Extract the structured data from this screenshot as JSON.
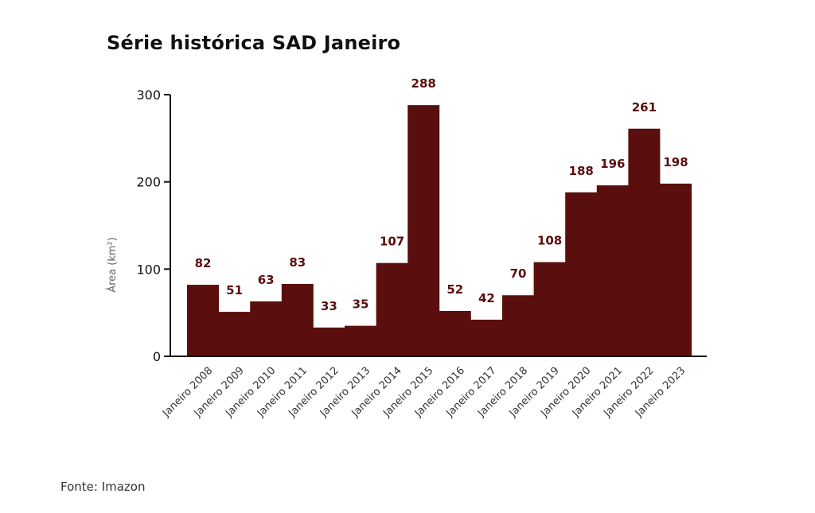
{
  "chart_data": {
    "type": "bar",
    "title": "Série histórica SAD Janeiro",
    "xlabel": "",
    "ylabel": "Área (km²)",
    "ylim": [
      0,
      300
    ],
    "yticks": [
      0,
      100,
      200,
      300
    ],
    "grid": false,
    "bar_color": "#5a0e0e",
    "label_color": "#5a0e0e",
    "categories": [
      "Janeiro 2008",
      "Janeiro 2009",
      "Janeiro 2010",
      "Janeiro 2011",
      "Janeiro 2012",
      "Janeiro 2013",
      "Janeiro 2014",
      "Janeiro 2015",
      "Janeiro 2016",
      "Janeiro 2017",
      "Janeiro 2018",
      "Janeiro 2019",
      "Janeiro 2020",
      "Janeiro 2021",
      "Janeiro 2022",
      "Janeiro 2023"
    ],
    "values": [
      82,
      51,
      63,
      83,
      33,
      35,
      107,
      288,
      52,
      42,
      70,
      108,
      188,
      196,
      261,
      198
    ]
  },
  "source": "Fonte: Imazon"
}
